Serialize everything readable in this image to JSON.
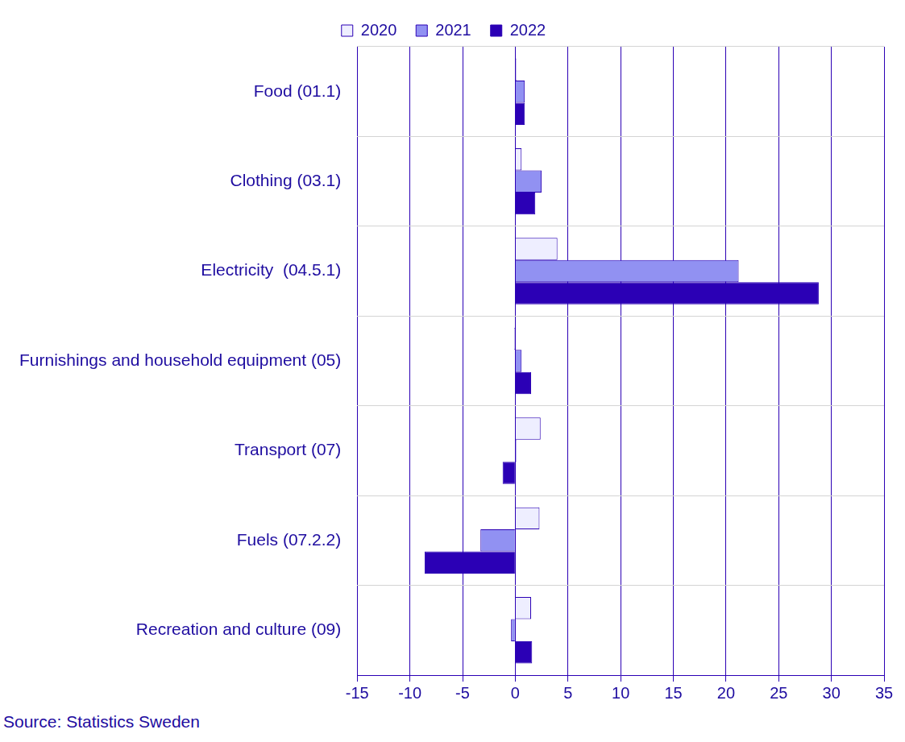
{
  "chart_data": {
    "type": "bar",
    "orientation": "horizontal",
    "categories": [
      "Food (01.1)",
      "Clothing (03.1)",
      "Electricity  (04.5.1)",
      "Furnishings and household equipment (05)",
      "Transport (07)",
      "Fuels (07.2.2)",
      "Recreation and culture (09)"
    ],
    "series": [
      {
        "name": "2020",
        "color": "#eeeeff",
        "values": [
          0.1,
          0.6,
          4.0,
          -0.1,
          2.4,
          2.3,
          1.5
        ]
      },
      {
        "name": "2021",
        "color": "#9191f2",
        "values": [
          0.9,
          2.5,
          21.2,
          0.6,
          0.1,
          -3.3,
          -0.4
        ]
      },
      {
        "name": "2022",
        "color": "#2b00b5",
        "values": [
          0.9,
          1.9,
          28.8,
          1.5,
          -1.2,
          -8.6,
          1.6
        ]
      }
    ],
    "xlim": [
      -15,
      35
    ],
    "xticks": [
      -15,
      -10,
      -5,
      0,
      5,
      10,
      15,
      20,
      25,
      30,
      35
    ],
    "grid": true,
    "legend": "top",
    "annotations": [
      "Source: Statistics Sweden"
    ]
  }
}
